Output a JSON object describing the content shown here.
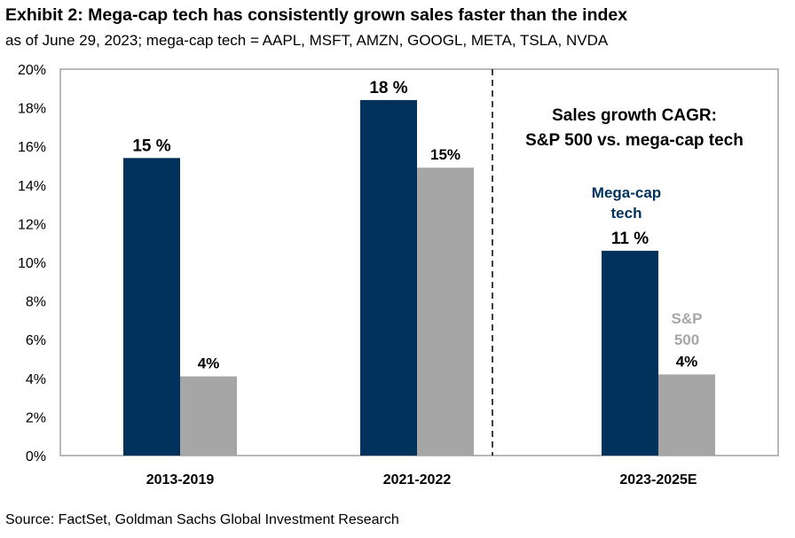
{
  "title": "Exhibit 2: Mega-cap tech has consistently grown sales faster than the index",
  "subtitle": "as of June 29, 2023; mega-cap tech = AAPL, MSFT, AMZN, GOOGL, META, TSLA, NVDA",
  "source": "Source: FactSet, Goldman Sachs Global Investment Research",
  "chart_data": {
    "type": "bar",
    "categories": [
      "2013-2019",
      "2021-2022",
      "2023-2025E"
    ],
    "series": [
      {
        "name": "Mega-cap tech",
        "color": "#00325c",
        "values": [
          15.4,
          18.4,
          10.6
        ],
        "labels": [
          "15 %",
          "18 %",
          "11 %"
        ]
      },
      {
        "name": "S&P 500",
        "color": "#a6a6a6",
        "values": [
          4.1,
          14.9,
          4.2
        ],
        "labels": [
          "4%",
          "15%",
          "4%"
        ]
      }
    ],
    "ylim": [
      0,
      20
    ],
    "yticks": [
      "0%",
      "2%",
      "4%",
      "6%",
      "8%",
      "10%",
      "12%",
      "14%",
      "16%",
      "18%",
      "20%"
    ],
    "annotation": [
      "Sales growth CAGR:",
      "S&P 500 vs. mega-cap tech"
    ],
    "series_label_lines": {
      "mega": [
        "Mega-cap",
        "tech"
      ],
      "sp": [
        "S&P",
        "500"
      ]
    },
    "grid": false,
    "divider": "dashed line before 2023-2025E"
  }
}
